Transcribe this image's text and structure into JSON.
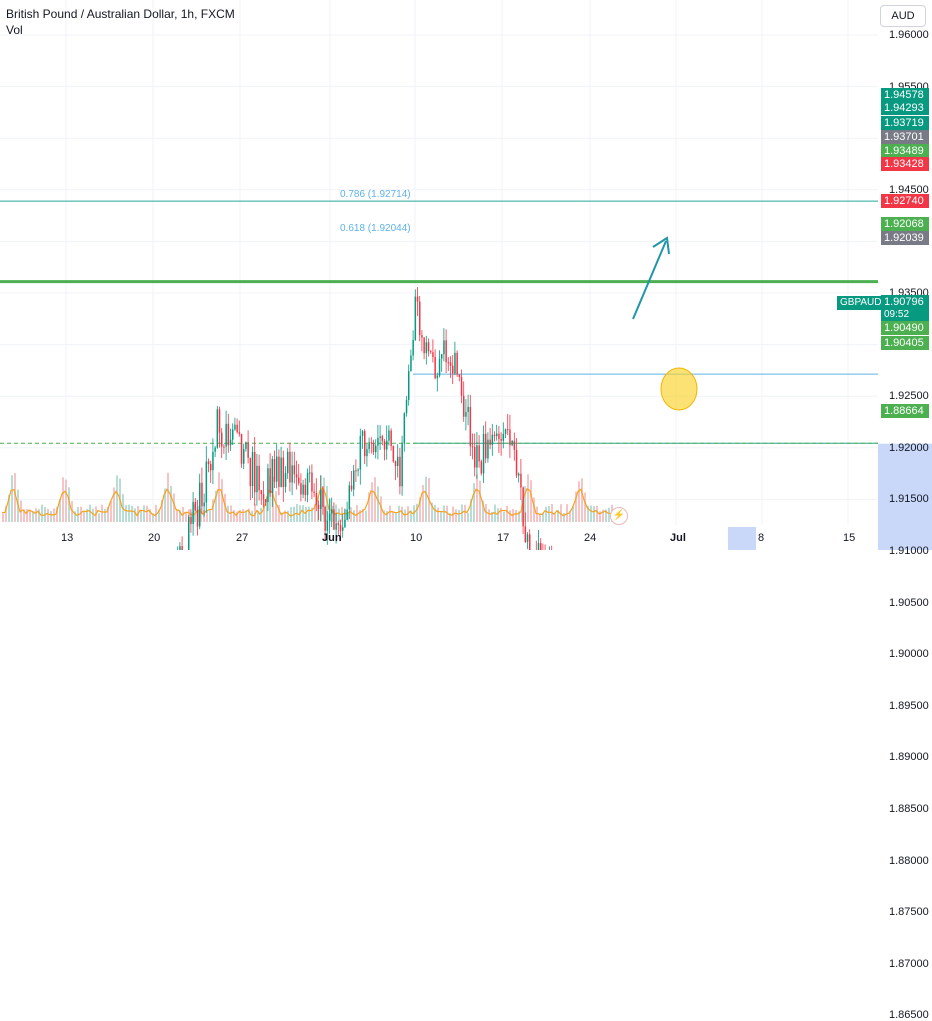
{
  "header": {
    "title": "British Pound / Australian Dollar, 1h, FXCM",
    "volume_label": "Vol"
  },
  "currency_button": "AUD",
  "price_axis": {
    "ticks": [
      "1.96000",
      "1.95500",
      "1.95000",
      "1.94500",
      "1.94000",
      "1.93500",
      "1.93000",
      "1.92500",
      "1.92000",
      "1.91500",
      "1.91000",
      "1.90500",
      "1.90000",
      "1.89500",
      "1.89000",
      "1.88500",
      "1.88000",
      "1.87500",
      "1.87000",
      "1.86500"
    ]
  },
  "price_badges": [
    {
      "value": "1.94578",
      "color": "#089981"
    },
    {
      "value": "1.94293",
      "color": "#089981"
    },
    {
      "value": "1.93719",
      "color": "#089981"
    },
    {
      "value": "1.93701",
      "color": "#787b86"
    },
    {
      "value": "1.93489",
      "color": "#4caf50"
    },
    {
      "value": "1.93428",
      "color": "#f23645"
    },
    {
      "value": "1.92740",
      "color": "#f23645"
    },
    {
      "value": "1.92068",
      "color": "#4caf50"
    },
    {
      "value": "1.92039",
      "color": "#787b86"
    },
    {
      "value": "1.90796",
      "color": "#089981"
    },
    {
      "value": "1.90490",
      "color": "#4caf50"
    },
    {
      "value": "1.90405",
      "color": "#4caf50"
    },
    {
      "value": "1.88664",
      "color": "#4caf50"
    }
  ],
  "last_price": {
    "symbol": "GBPAUD",
    "value": "1.90796",
    "countdown": "09:52"
  },
  "fib_labels": {
    "f786": "0.786 (1.92714)",
    "f618": "0.618 (1.92044)"
  },
  "date_axis": [
    "13",
    "20",
    "27",
    "Jun",
    "10",
    "17",
    "24",
    "Jul",
    "8",
    "15"
  ],
  "chart_data": {
    "type": "candlestick",
    "ylim": [
      1.865,
      1.9625
    ],
    "horizontal_levels": [
      1.9439,
      1.9361,
      1.8866,
      1.9049
    ],
    "fib_levels": [
      1.92714,
      1.92044
    ],
    "target_circle_price": 1.9256,
    "price_path": [
      [
        0,
        1.9
      ],
      [
        20,
        1.902
      ],
      [
        40,
        1.897
      ],
      [
        60,
        1.899
      ],
      [
        80,
        1.903
      ],
      [
        100,
        1.9
      ],
      [
        120,
        1.898
      ],
      [
        140,
        1.901
      ],
      [
        160,
        1.899
      ],
      [
        180,
        1.91
      ],
      [
        200,
        1.915
      ],
      [
        215,
        1.922
      ],
      [
        235,
        1.921
      ],
      [
        260,
        1.916
      ],
      [
        280,
        1.918
      ],
      [
        300,
        1.917
      ],
      [
        320,
        1.914
      ],
      [
        340,
        1.913
      ],
      [
        360,
        1.92
      ],
      [
        380,
        1.921
      ],
      [
        400,
        1.918
      ],
      [
        415,
        1.934
      ],
      [
        430,
        1.928
      ],
      [
        445,
        1.93
      ],
      [
        460,
        1.926
      ],
      [
        475,
        1.918
      ],
      [
        490,
        1.922
      ],
      [
        510,
        1.92
      ],
      [
        530,
        1.91
      ],
      [
        550,
        1.907
      ],
      [
        565,
        1.905
      ],
      [
        580,
        1.901
      ],
      [
        595,
        1.906
      ],
      [
        610,
        1.906
      ],
      [
        618,
        1.908
      ]
    ]
  },
  "colors": {
    "up": "#089981",
    "down": "#f23645",
    "level_green": "#4caf50",
    "level_teal": "#26a69a",
    "arrow": "#2196a8",
    "circle": "#fbd32b"
  }
}
